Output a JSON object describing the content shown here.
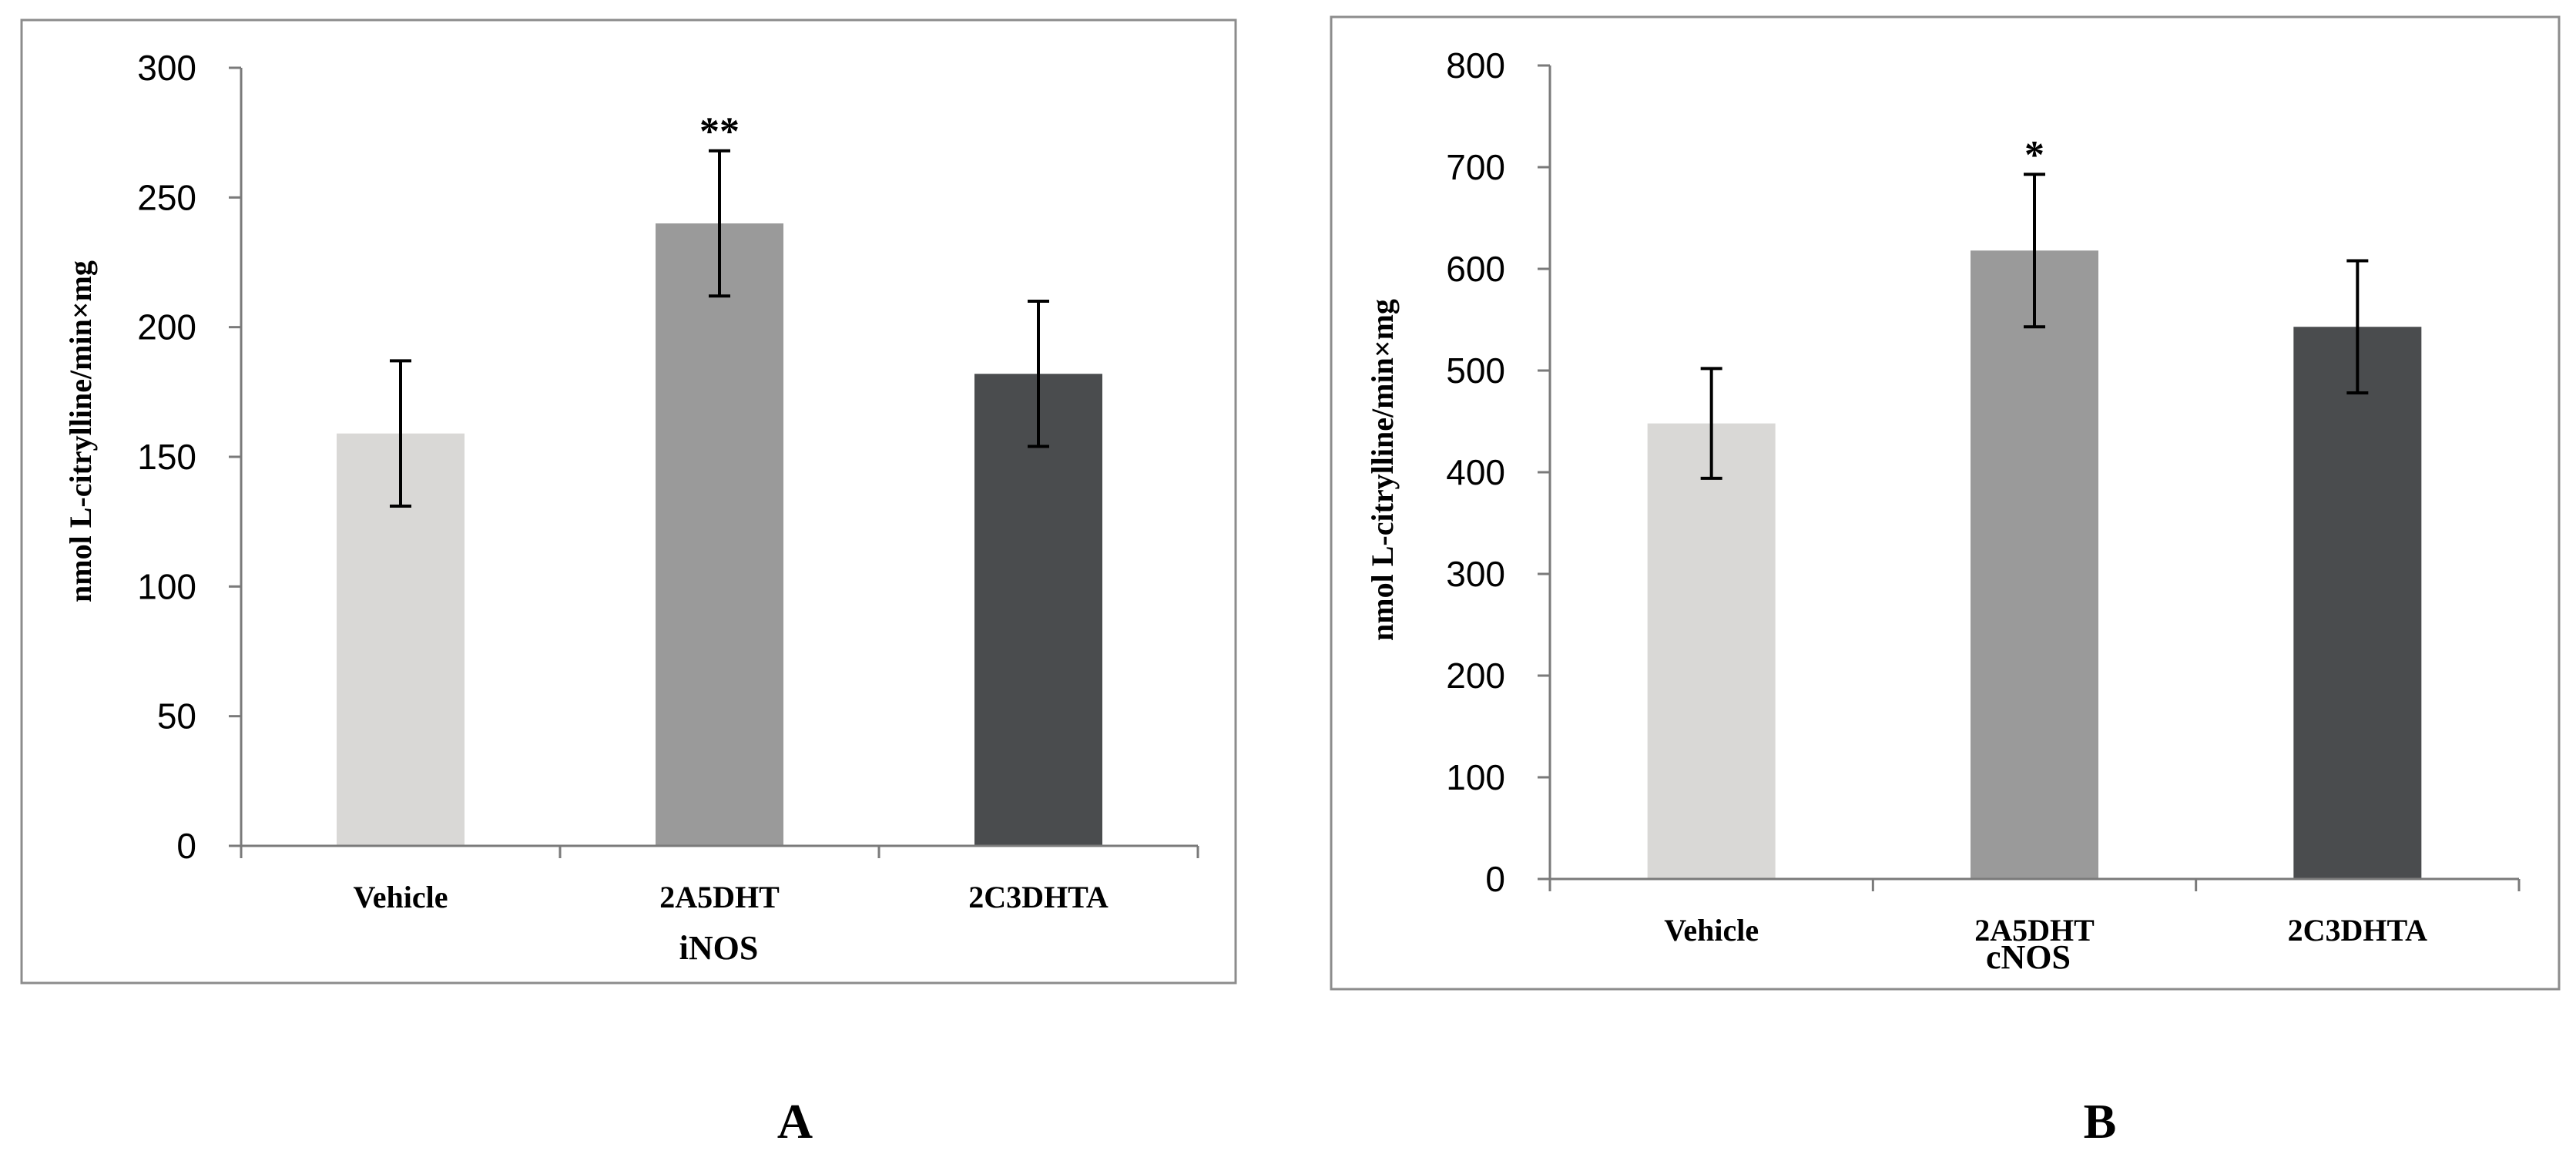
{
  "chart_data": [
    {
      "type": "bar",
      "panel_label": "A",
      "xlabel": "iNOS",
      "ylabel": "nmol L-citrylline/min×mg",
      "categories": [
        "Vehicle",
        "2A5DHT",
        "2C3DHTA"
      ],
      "values": [
        159,
        240,
        182
      ],
      "errors": [
        28,
        28,
        28
      ],
      "significance": [
        "",
        "**",
        ""
      ],
      "colors": [
        "#d9d8d6",
        "#9a9a9a",
        "#4a4c4e"
      ],
      "ylim": [
        0,
        300
      ],
      "yticks": [
        0,
        50,
        100,
        150,
        200,
        250,
        300
      ],
      "grid": false
    },
    {
      "type": "bar",
      "panel_label": "B",
      "xlabel": "cNOS",
      "ylabel": "nmol L-citrylline/min×mg",
      "categories": [
        "Vehicle",
        "2A5DHT",
        "2C3DHTA"
      ],
      "values": [
        448,
        618,
        543
      ],
      "errors": [
        54,
        75,
        65
      ],
      "significance": [
        "",
        "*",
        ""
      ],
      "colors": [
        "#d9d8d6",
        "#9a9a9a",
        "#4a4c4e"
      ],
      "ylim": [
        0,
        800
      ],
      "yticks": [
        0,
        100,
        200,
        300,
        400,
        500,
        600,
        700,
        800
      ],
      "grid": false
    }
  ]
}
